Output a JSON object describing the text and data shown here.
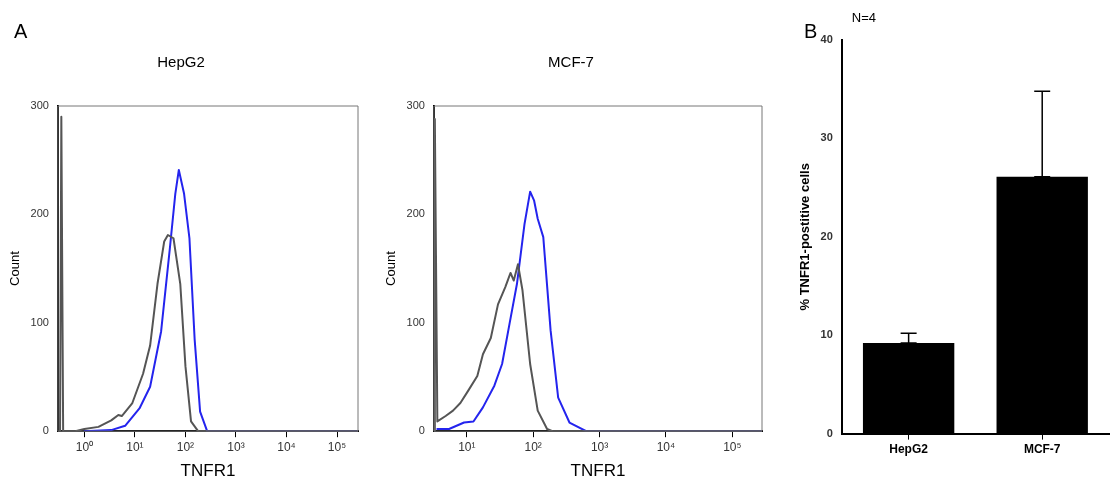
{
  "chart_data": [
    {
      "type": "line",
      "title": "HepG2",
      "xlabel": "TNFR1",
      "ylabel": "Count",
      "log": "x",
      "marker": "none",
      "annotations": [
        "A"
      ],
      "xlim": [
        0.3,
        260000
      ],
      "xticks": [
        {
          "value": 1,
          "label": "10⁰"
        },
        {
          "value": 10,
          "label": "10¹"
        },
        {
          "value": 100,
          "label": "10²"
        },
        {
          "value": 1000,
          "label": "10³"
        },
        {
          "value": 10000,
          "label": "10⁴"
        },
        {
          "value": 100000,
          "label": "10⁵"
        }
      ],
      "ylim": [
        0,
        300
      ],
      "yticks": [
        0,
        100,
        200,
        300
      ],
      "series": [
        {
          "color": "#555555",
          "x": [
            0.33,
            0.35,
            0.38,
            0.66,
            1,
            1.9,
            3.4,
            4.7,
            5.5,
            8.9,
            14.5,
            20,
            28,
            38,
            45,
            58,
            79,
            100,
            129,
            178,
            260000
          ],
          "values": [
            0,
            290,
            0,
            0,
            2,
            4,
            10,
            15,
            14,
            26,
            53,
            79,
            136,
            175,
            181,
            178,
            136,
            60,
            9,
            0,
            0
          ]
        },
        {
          "color": "#2424ee",
          "x": [
            0.97,
            3.4,
            6.4,
            12.3,
            20,
            33,
            49,
            63,
            74,
            94,
            120,
            152,
            195,
            269,
            260000
          ],
          "values": [
            0,
            1,
            5,
            21,
            41,
            92,
            168,
            219,
            241,
            219,
            178,
            85,
            18,
            0,
            0
          ]
        }
      ]
    },
    {
      "type": "line",
      "title": "MCF-7",
      "xlabel": "TNFR1",
      "ylabel": "Count",
      "log": "x",
      "marker": "none",
      "xlim": [
        3.2,
        280000
      ],
      "xticks": [
        {
          "value": 10,
          "label": "10¹"
        },
        {
          "value": 100,
          "label": "10²"
        },
        {
          "value": 1000,
          "label": "10³"
        },
        {
          "value": 10000,
          "label": "10⁴"
        },
        {
          "value": 100000,
          "label": "10⁵"
        }
      ],
      "ylim": [
        0,
        300
      ],
      "yticks": [
        0,
        100,
        200,
        300
      ],
      "series": [
        {
          "color": "#555555",
          "x": [
            3.25,
            3.3,
            3.6,
            4.8,
            6.2,
            8,
            10.4,
            14.4,
            17.5,
            23,
            29.5,
            38,
            45.6,
            51,
            59,
            69,
            90,
            117,
            162,
            195,
            280000
          ],
          "values": [
            0,
            288,
            9,
            14,
            19,
            26,
            37,
            51,
            71,
            86,
            117,
            133,
            146,
            139,
            154,
            130,
            62,
            19,
            2,
            0,
            0
          ]
        },
        {
          "color": "#2424ee",
          "x": [
            3.5,
            5.4,
            9.1,
            12.6,
            17.5,
            26,
            34,
            44,
            57,
            74,
            90,
            103,
            117,
            142,
            183,
            238,
            352,
            630,
            280000
          ],
          "values": [
            2,
            2,
            8,
            9,
            22,
            42,
            62,
            99,
            136,
            191,
            221,
            213,
            196,
            179,
            93,
            31,
            8,
            0,
            0
          ]
        }
      ]
    },
    {
      "type": "bar",
      "ylabel": "% TNFR1-postitive cells",
      "annotations": [
        "B",
        "N=4"
      ],
      "categories": [
        "HepG2",
        "MCF-7"
      ],
      "values": [
        9.2,
        26.1
      ],
      "errors": [
        [
          9.2,
          10.2
        ],
        [
          26.1,
          34.8
        ]
      ],
      "color": "#000000",
      "ylim": [
        0,
        40
      ],
      "yticks": [
        0,
        10,
        20,
        30,
        40
      ]
    }
  ]
}
